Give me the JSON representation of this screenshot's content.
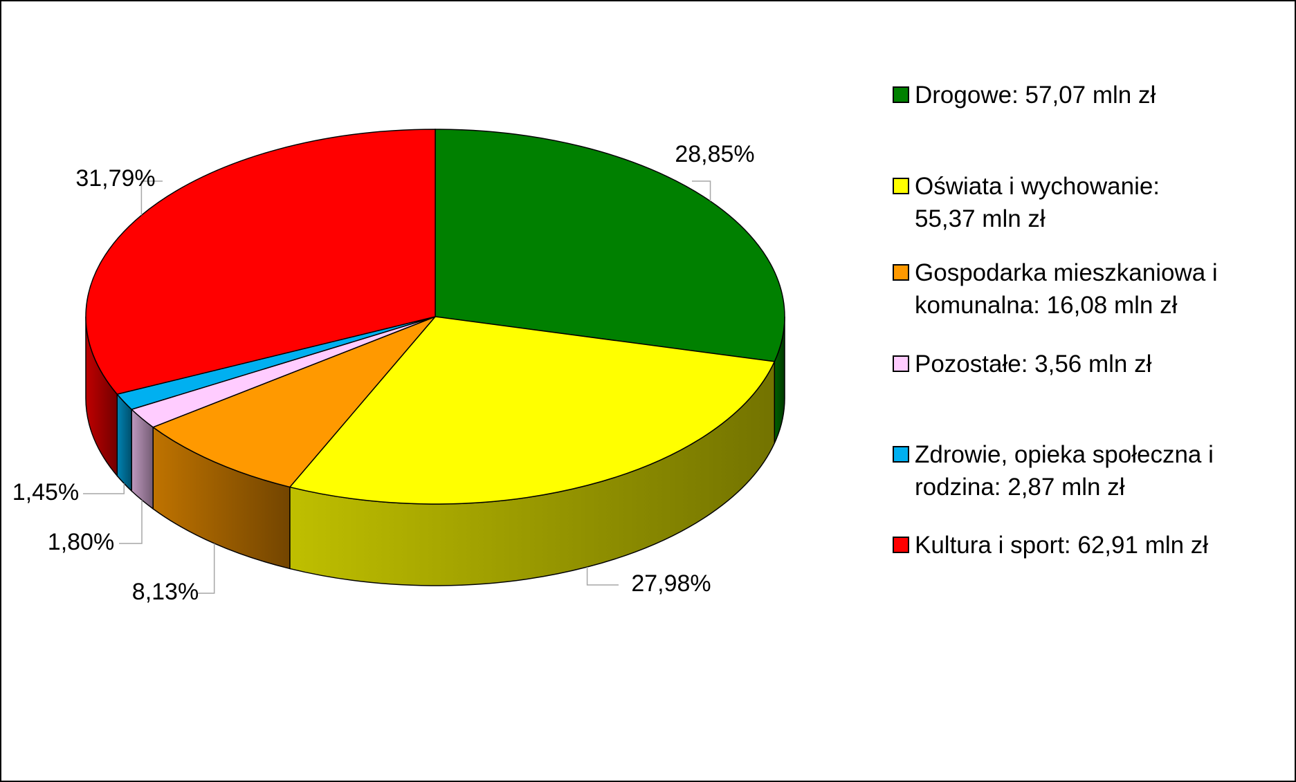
{
  "chart_data": {
    "type": "pie3d",
    "categories": [
      "Drogowe: 57,07 mln zł",
      "Oświata i wychowanie: 55,37 mln zł",
      "Gospodarka mieszkaniowa i komunalna: 16,08 mln zł",
      "Pozostałe: 3,56 mln zł",
      "Zdrowie, opieka społeczna i rodzina: 2,87 mln zł",
      "Kultura i sport: 62,91 mln zł"
    ],
    "values": [
      28.85,
      27.98,
      8.13,
      1.8,
      1.45,
      31.79
    ],
    "value_labels": [
      "28,85%",
      "27,98%",
      "8,13%",
      "1,80%",
      "1,45%",
      "31,79%"
    ],
    "colors": [
      "#008000",
      "#ffff00",
      "#ff9900",
      "#ffccff",
      "#00b0f0",
      "#ff0000"
    ],
    "legend": "right"
  }
}
